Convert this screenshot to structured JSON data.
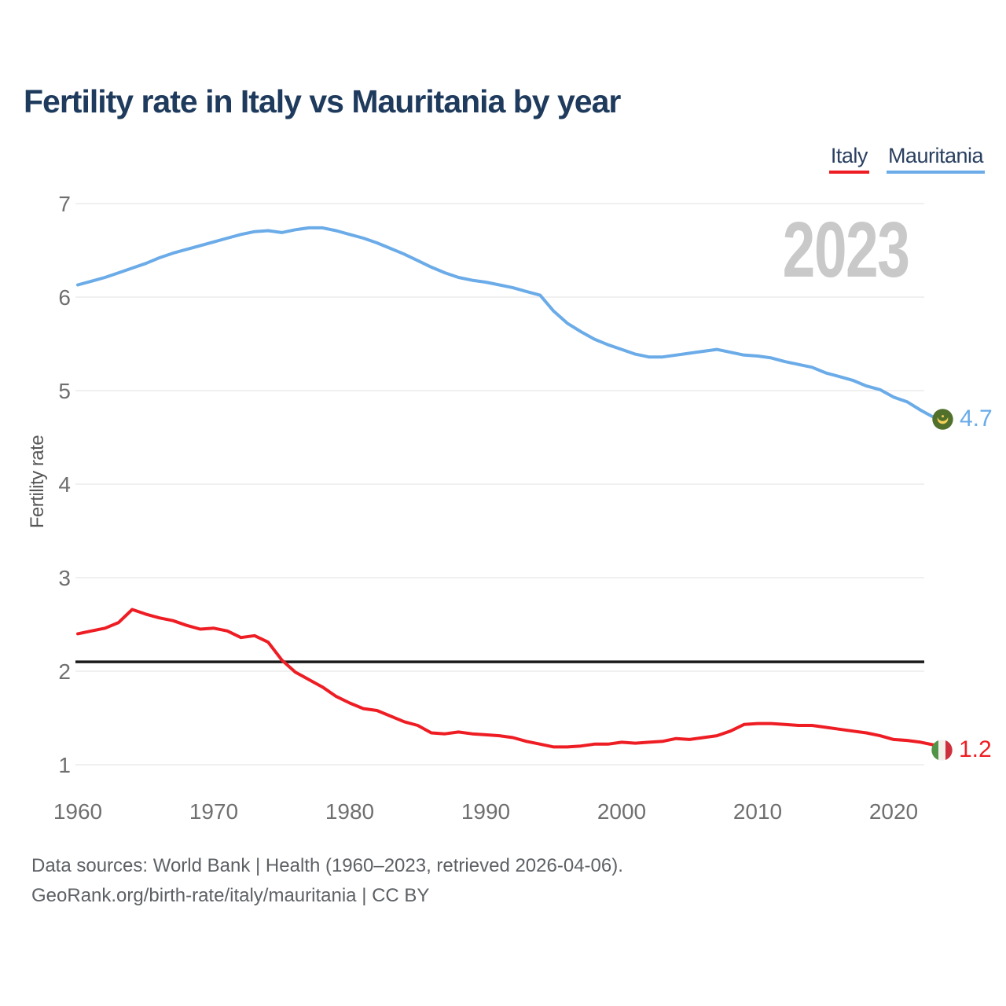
{
  "watermark": "2023",
  "legend": {
    "items": [
      {
        "label": "Italy",
        "underline_color": "#ee1d23"
      },
      {
        "label": "Mauritania",
        "underline_color": "#6aabe8"
      }
    ]
  },
  "end_labels": {
    "mauritania": {
      "value": "4.7",
      "flag": "mauritania-flag"
    },
    "italy": {
      "value": "1.2",
      "flag": "italy-flag"
    }
  },
  "footer": {
    "line1": "Data sources: World Bank | Health (1960–2023, retrieved 2026-04-06).",
    "line2": "GeoRank.org/birth-rate/italy/mauritania | CC BY"
  },
  "chart_data": {
    "type": "line",
    "title": "Fertility rate in Italy vs Mauritania by year",
    "xlabel": "",
    "ylabel": "Fertility rate",
    "x_start": 1960,
    "x_end": 2023,
    "x_ticks": [
      1960,
      1970,
      1980,
      1990,
      2000,
      2010,
      2020
    ],
    "y_ticks": [
      1,
      2,
      3,
      4,
      5,
      6,
      7
    ],
    "ylim": [
      1,
      7
    ],
    "grid": "horizontal",
    "legend_position": "top-right",
    "reference_line": {
      "value": 2.1,
      "color": "#1b1b1b"
    },
    "series": [
      {
        "name": "Italy",
        "color": "#ee1d23",
        "end_label": "1.2",
        "values": [
          2.4,
          2.43,
          2.46,
          2.52,
          2.66,
          2.61,
          2.57,
          2.54,
          2.49,
          2.45,
          2.46,
          2.43,
          2.36,
          2.38,
          2.31,
          2.12,
          1.99,
          1.91,
          1.83,
          1.73,
          1.66,
          1.6,
          1.58,
          1.52,
          1.46,
          1.42,
          1.34,
          1.33,
          1.35,
          1.33,
          1.32,
          1.31,
          1.29,
          1.25,
          1.22,
          1.19,
          1.19,
          1.2,
          1.22,
          1.22,
          1.24,
          1.23,
          1.24,
          1.25,
          1.28,
          1.27,
          1.29,
          1.31,
          1.36,
          1.43,
          1.44,
          1.44,
          1.43,
          1.42,
          1.42,
          1.4,
          1.38,
          1.36,
          1.34,
          1.31,
          1.27,
          1.26,
          1.24,
          1.21
        ]
      },
      {
        "name": "Mauritania",
        "color": "#6aabe8",
        "end_label": "4.7",
        "values": [
          6.13,
          6.17,
          6.21,
          6.26,
          6.31,
          6.36,
          6.42,
          6.47,
          6.51,
          6.55,
          6.59,
          6.63,
          6.67,
          6.7,
          6.71,
          6.69,
          6.72,
          6.74,
          6.74,
          6.71,
          6.67,
          6.63,
          6.58,
          6.52,
          6.46,
          6.39,
          6.32,
          6.26,
          6.21,
          6.18,
          6.16,
          6.13,
          6.1,
          6.06,
          6.02,
          5.85,
          5.72,
          5.63,
          5.55,
          5.49,
          5.44,
          5.39,
          5.36,
          5.36,
          5.38,
          5.4,
          5.42,
          5.44,
          5.41,
          5.38,
          5.37,
          5.35,
          5.31,
          5.28,
          5.25,
          5.19,
          5.15,
          5.11,
          5.05,
          5.01,
          4.93,
          4.88,
          4.79,
          4.71
        ]
      }
    ]
  }
}
